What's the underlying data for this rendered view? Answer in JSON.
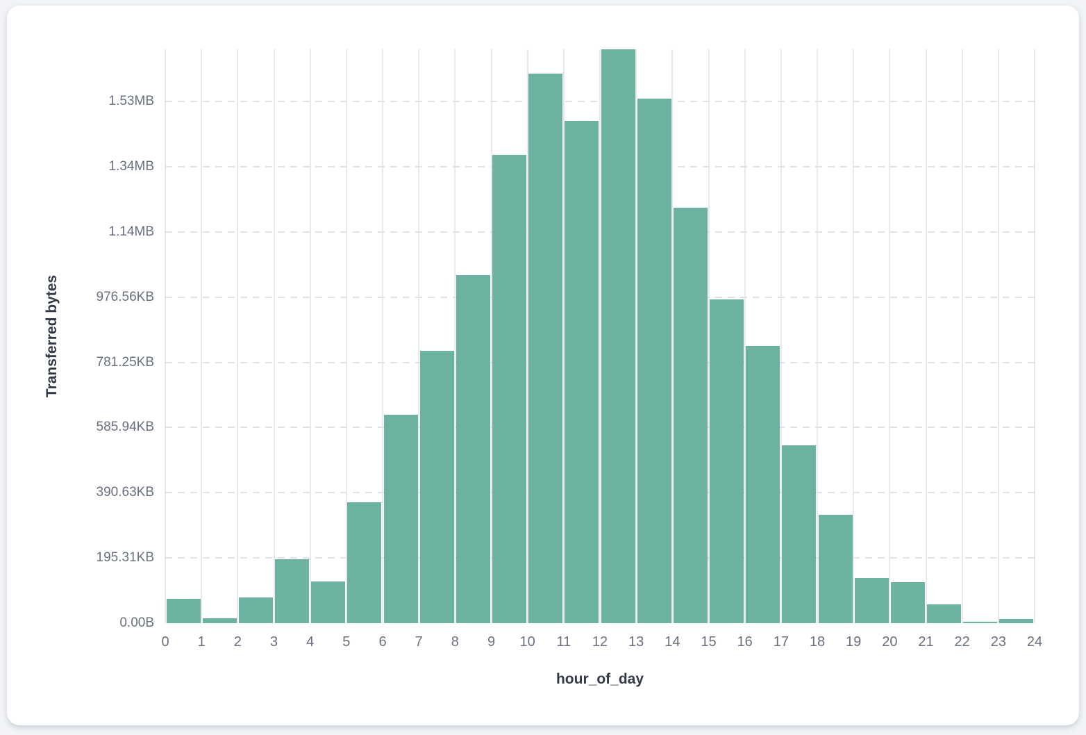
{
  "chart_data": {
    "type": "bar",
    "title": "",
    "xlabel": "hour_of_day",
    "ylabel": "Transferred bytes",
    "x_tick_labels": [
      "0",
      "1",
      "2",
      "3",
      "4",
      "5",
      "6",
      "7",
      "8",
      "9",
      "10",
      "11",
      "12",
      "13",
      "14",
      "15",
      "16",
      "17",
      "18",
      "19",
      "20",
      "21",
      "22",
      "23",
      "24"
    ],
    "y_ticks": [
      {
        "label": "0.00B",
        "bytes": 0
      },
      {
        "label": "195.31KB",
        "bytes": 200000
      },
      {
        "label": "390.63KB",
        "bytes": 400000
      },
      {
        "label": "585.94KB",
        "bytes": 600000
      },
      {
        "label": "781.25KB",
        "bytes": 800000
      },
      {
        "label": "976.56KB",
        "bytes": 1000000
      },
      {
        "label": "1.14MB",
        "bytes": 1200000
      },
      {
        "label": "1.34MB",
        "bytes": 1400000
      },
      {
        "label": "1.53MB",
        "bytes": 1600000
      }
    ],
    "ylim": [
      0,
      1760000
    ],
    "xlim": [
      0,
      24
    ],
    "bin_width_hours": 1,
    "unit": "bytes",
    "grid": true,
    "legend": false,
    "categories": [
      0,
      1,
      2,
      3,
      4,
      5,
      6,
      7,
      8,
      9,
      10,
      11,
      12,
      13,
      14,
      15,
      16,
      17,
      18,
      19,
      20,
      21,
      22,
      23
    ],
    "values": [
      75000,
      16000,
      78000,
      197000,
      128000,
      370000,
      640000,
      836000,
      1067000,
      1436000,
      1686000,
      1540000,
      1760000,
      1608000,
      1275000,
      993000,
      850000,
      545000,
      333000,
      139000,
      125000,
      58000,
      3600,
      12800
    ],
    "colors": {
      "bar": "#6db2a0",
      "grid_vertical": "#e7e9ee",
      "grid_horizontal": "#dfe2e8",
      "tick_text": "#69707f",
      "axis_title_text": "#333947",
      "card_bg": "#ffffff",
      "page_bg": "#f2f4f7"
    }
  }
}
